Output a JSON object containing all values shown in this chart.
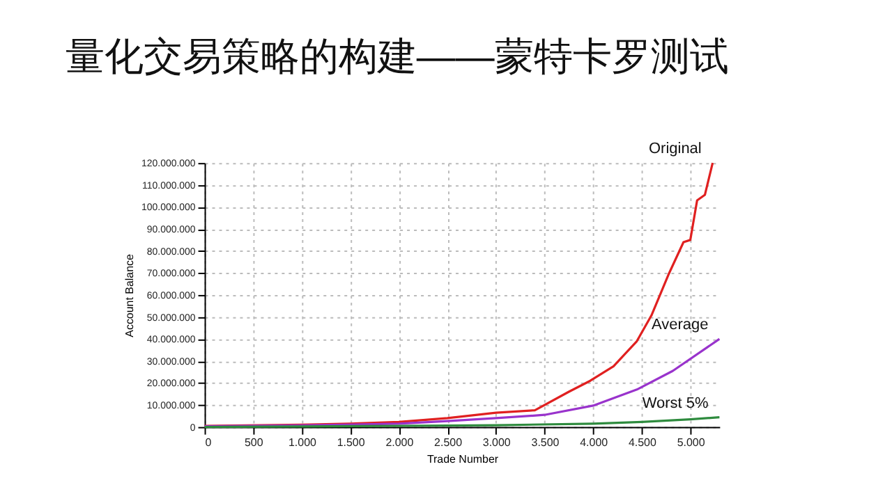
{
  "chart_data": {
    "type": "line",
    "title": "量化交易策略的构建——蒙特卡罗测试",
    "xlabel": "Trade Number",
    "ylabel": "Account Balance",
    "xlim": [
      0,
      5300
    ],
    "ylim": [
      0,
      120000000
    ],
    "xticks": [
      0,
      500,
      {
        "value": 1000,
        "label": "1.000"
      },
      {
        "value": 1500,
        "label": "1.500"
      },
      {
        "value": 2000,
        "label": "2.000"
      },
      {
        "value": 2500,
        "label": "2.500"
      },
      {
        "value": 3000,
        "label": "3.000"
      },
      {
        "value": 3500,
        "label": "3.500"
      },
      {
        "value": 4000,
        "label": "4.000"
      },
      {
        "value": 4500,
        "label": "4.500"
      },
      {
        "value": 5000,
        "label": "5.000"
      }
    ],
    "yticks": [
      0,
      {
        "value": 10000000,
        "label": "10.000.000"
      },
      {
        "value": 20000000,
        "label": "20.000.000"
      },
      {
        "value": 30000000,
        "label": "30.000.000"
      },
      {
        "value": 40000000,
        "label": "40.000.000"
      },
      {
        "value": 50000000,
        "label": "50.000.000"
      },
      {
        "value": 60000000,
        "label": "60.000.000"
      },
      {
        "value": 70000000,
        "label": "70.000.000"
      },
      {
        "value": 80000000,
        "label": "80.000.000"
      },
      {
        "value": 90000000,
        "label": "90.000.000"
      },
      {
        "value": 100000000,
        "label": "100.000.000"
      },
      {
        "value": 110000000,
        "label": "110.000.000"
      },
      {
        "value": 120000000,
        "label": "120.000.000"
      }
    ],
    "grid": true,
    "legend": false,
    "line_style": "solid",
    "marker": "none",
    "series": [
      {
        "name": "Original",
        "color": "#e02020",
        "x": [
          0,
          1000,
          1500,
          2000,
          2500,
          3000,
          3400,
          3750,
          3970,
          4210,
          4450,
          4600,
          4780,
          4930,
          5000,
          5070,
          5150,
          5230
        ],
        "values": [
          500000,
          1000000,
          1500000,
          2300000,
          4000000,
          6500000,
          7600000,
          16000000,
          21000000,
          27600000,
          39000000,
          50700000,
          69700000,
          84000000,
          85000000,
          103000000,
          105500000,
          120000000
        ]
      },
      {
        "name": "Average",
        "color": "#9933cc",
        "x": [
          0,
          1000,
          2000,
          2500,
          3000,
          3500,
          4000,
          4450,
          4820,
          5300
        ],
        "values": [
          300000,
          700000,
          1500000,
          2700000,
          4000000,
          5500000,
          9700000,
          17000000,
          25500000,
          40000000
        ]
      },
      {
        "name": "Worst 5%",
        "color": "#2e8b3e",
        "x": [
          0,
          1000,
          2000,
          3000,
          4000,
          4500,
          5000,
          5300
        ],
        "values": [
          0,
          200000,
          500000,
          800000,
          1500000,
          2300000,
          3500000,
          4400000
        ]
      }
    ]
  }
}
